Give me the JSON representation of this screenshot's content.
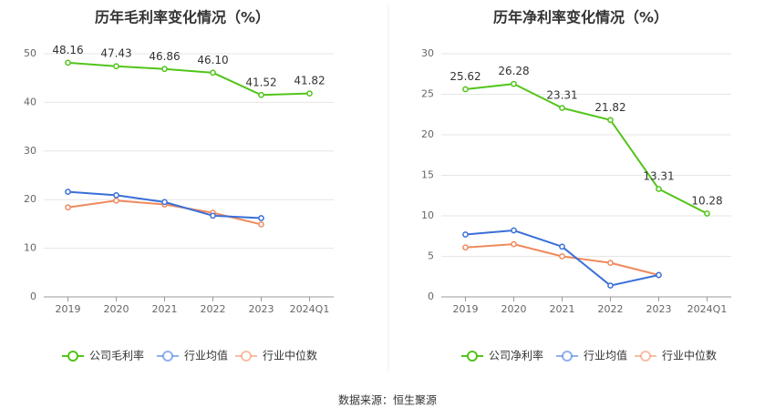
{
  "colors": {
    "company": "#52c41a",
    "industry_avg": "#3a6fd8",
    "industry_median": "#f08a5d",
    "grid": "#e6e6e6",
    "axis": "#999999"
  },
  "legend": {
    "industry_avg": "行业均值",
    "industry_median": "行业中位数"
  },
  "source_text": "数据来源：恒生聚源",
  "chart_data": [
    {
      "type": "line",
      "title": "历年毛利率变化情况（%）",
      "categories": [
        "2019",
        "2020",
        "2021",
        "2022",
        "2023",
        "2024Q1"
      ],
      "ylim": [
        0,
        50
      ],
      "yticks": [
        0,
        10,
        20,
        30,
        40,
        50
      ],
      "grid": true,
      "legend_position": "bottom",
      "series": [
        {
          "key": "company",
          "name": "公司毛利率",
          "values": [
            48.16,
            47.43,
            46.86,
            46.1,
            41.52,
            41.82
          ],
          "labels": [
            "48.16",
            "47.43",
            "46.86",
            "46.10",
            "41.52",
            "41.82"
          ]
        },
        {
          "key": "industry_avg",
          "name": "行业均值",
          "values": [
            21.6,
            20.9,
            19.5,
            16.7,
            16.2,
            null
          ]
        },
        {
          "key": "industry_median",
          "name": "行业中位数",
          "values": [
            18.4,
            19.8,
            19.0,
            17.3,
            14.9,
            null
          ]
        }
      ]
    },
    {
      "type": "line",
      "title": "历年净利率变化情况（%）",
      "categories": [
        "2019",
        "2020",
        "2021",
        "2022",
        "2023",
        "2024Q1"
      ],
      "ylim": [
        0,
        30
      ],
      "yticks": [
        0,
        5,
        10,
        15,
        20,
        25,
        30
      ],
      "grid": true,
      "legend_position": "bottom",
      "series": [
        {
          "key": "company",
          "name": "公司净利率",
          "values": [
            25.62,
            26.28,
            23.31,
            21.82,
            13.31,
            10.28
          ],
          "labels": [
            "25.62",
            "26.28",
            "23.31",
            "21.82",
            "13.31",
            "10.28"
          ]
        },
        {
          "key": "industry_avg",
          "name": "行业均值",
          "values": [
            7.7,
            8.2,
            6.2,
            1.4,
            2.7,
            null
          ]
        },
        {
          "key": "industry_median",
          "name": "行业中位数",
          "values": [
            6.1,
            6.5,
            5.0,
            4.2,
            2.7,
            null
          ]
        }
      ]
    }
  ]
}
